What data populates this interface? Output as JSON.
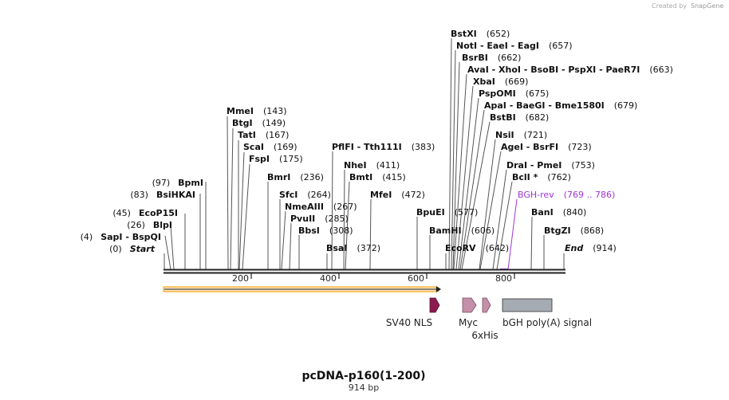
{
  "credit": "Created by",
  "credit_brand": "SnapGene",
  "map": {
    "name": "pcDNA-p160(1-200)",
    "length_label": "914 bp"
  },
  "ruler": {
    "ticks": [
      {
        "label": "200"
      },
      {
        "label": "400"
      },
      {
        "label": "600"
      },
      {
        "label": "800"
      }
    ]
  },
  "sites": [
    {
      "name": "BstXI",
      "pos": "(652)",
      "pos_first": false
    },
    {
      "name": "NotI - EaeI - EagI",
      "pos": "(657)",
      "pos_first": false
    },
    {
      "name": "BsrBI",
      "pos": "(662)",
      "pos_first": false
    },
    {
      "name": "AvaI - XhoI - BsoBI - PspXI - PaeR7I",
      "pos": "(663)",
      "pos_first": false
    },
    {
      "name": "XbaI",
      "pos": "(669)",
      "pos_first": false
    },
    {
      "name": "PspOMI",
      "pos": "(675)",
      "pos_first": false
    },
    {
      "name": "ApaI - BaeGI - Bme1580I",
      "pos": "(679)",
      "pos_first": false
    },
    {
      "name": "BstBI",
      "pos": "(682)",
      "pos_first": false
    },
    {
      "name": "NsiI",
      "pos": "(721)",
      "pos_first": false
    },
    {
      "name": "AgeI - BsrFI",
      "pos": "(723)",
      "pos_first": false
    },
    {
      "name": "DraI - PmeI",
      "pos": "(753)",
      "pos_first": false
    },
    {
      "name": "BclI *",
      "pos": "(762)",
      "pos_first": false
    },
    {
      "name": "BanI",
      "pos": "(840)",
      "pos_first": false
    },
    {
      "name": "BtgZI",
      "pos": "(868)",
      "pos_first": false
    },
    {
      "name": "End",
      "pos": "(914)",
      "pos_first": false
    },
    {
      "name": "MmeI",
      "pos": "(143)",
      "pos_first": false
    },
    {
      "name": "BtgI",
      "pos": "(149)",
      "pos_first": false
    },
    {
      "name": "TatI",
      "pos": "(167)",
      "pos_first": false
    },
    {
      "name": "ScaI",
      "pos": "(169)",
      "pos_first": false
    },
    {
      "name": "FspI",
      "pos": "(175)",
      "pos_first": false
    },
    {
      "name": "BmrI",
      "pos": "(236)",
      "pos_first": false
    },
    {
      "name": "SfcI",
      "pos": "(264)",
      "pos_first": false
    },
    {
      "name": "NmeAIII",
      "pos": "(267)",
      "pos_first": false
    },
    {
      "name": "PvuII",
      "pos": "(285)",
      "pos_first": false
    },
    {
      "name": "BbsI",
      "pos": "(308)",
      "pos_first": false
    },
    {
      "name": "BsaI",
      "pos": "(372)",
      "pos_first": false
    },
    {
      "name": "PflFI - Tth111I",
      "pos": "(383)",
      "pos_first": false
    },
    {
      "name": "NheI",
      "pos": "(411)",
      "pos_first": false
    },
    {
      "name": "BmtI",
      "pos": "(415)",
      "pos_first": false
    },
    {
      "name": "MfeI",
      "pos": "(472)",
      "pos_first": false
    },
    {
      "name": "BpuEI",
      "pos": "(577)",
      "pos_first": false
    },
    {
      "name": "BamHI",
      "pos": "(606)",
      "pos_first": false
    },
    {
      "name": "EcoRV",
      "pos": "(642)",
      "pos_first": false
    },
    {
      "name": "BpmI",
      "pos": "(97)",
      "pos_first": true
    },
    {
      "name": "BsiHKAI",
      "pos": "(83)",
      "pos_first": true
    },
    {
      "name": "EcoP15I",
      "pos": "(45)",
      "pos_first": true
    },
    {
      "name": "BlpI",
      "pos": "(26)",
      "pos_first": true
    },
    {
      "name": "SapI - BspQI",
      "pos": "(4)",
      "pos_first": true
    },
    {
      "name": "Start",
      "pos": "(0)",
      "pos_first": true
    }
  ],
  "primer": {
    "name": "BGH-rev",
    "range": "(769 .. 786)",
    "color": "#a034d8"
  },
  "features": [
    {
      "name": "SV40 NLS",
      "color": "#8b1a4f"
    },
    {
      "name": "Myc",
      "color": "#c48fa8"
    },
    {
      "name": "6xHis",
      "color": "#c48fa8"
    },
    {
      "name": "bGH poly(A) signal",
      "color": "#a5abb2"
    }
  ],
  "orf": {
    "color": "#f5a623"
  }
}
